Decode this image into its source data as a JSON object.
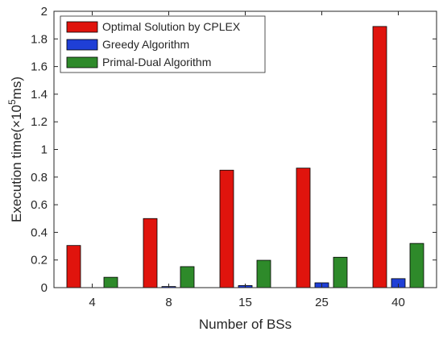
{
  "chart_data": {
    "type": "bar",
    "categories": [
      "4",
      "8",
      "15",
      "25",
      "40"
    ],
    "series": [
      {
        "name": "Optimal Solution by CPLEX",
        "color": "#e0140d",
        "values": [
          0.305,
          0.5,
          0.85,
          0.865,
          1.89
        ]
      },
      {
        "name": "Greedy Algorithm",
        "color": "#1f3fd6",
        "values": [
          0.0,
          0.008,
          0.015,
          0.035,
          0.065
        ]
      },
      {
        "name": "Primal-Dual Algorithm",
        "color": "#2e8a2a",
        "values": [
          0.075,
          0.152,
          0.198,
          0.22,
          0.32
        ]
      }
    ],
    "xlabel": "Number of BSs",
    "ylabel_prefix": "Execution time(×10",
    "ylabel_exp": "5",
    "ylabel_suffix": "ms)",
    "ylim": [
      0,
      2
    ],
    "yticks": [
      "0",
      "0.2",
      "0.4",
      "0.6",
      "0.8",
      "1",
      "1.2",
      "1.4",
      "1.6",
      "1.8",
      "2"
    ],
    "grid": false,
    "legend_position": "top-left"
  }
}
